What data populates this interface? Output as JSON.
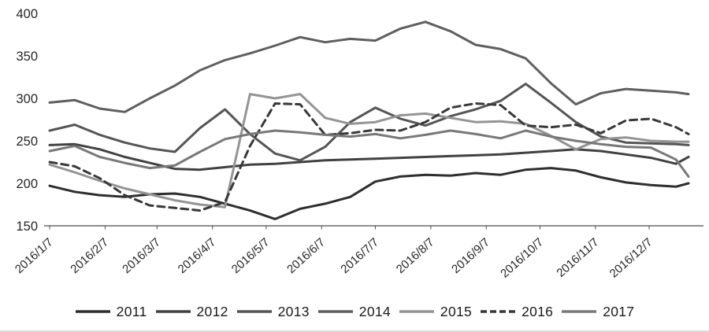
{
  "chart_data": {
    "type": "line",
    "title": "",
    "xlabel": "",
    "ylabel": "",
    "grid": false,
    "legend_position": "bottom",
    "y_axis": {
      "min": 150,
      "max": 400,
      "step": 50,
      "tick_labels": [
        "150",
        "200",
        "250",
        "300",
        "350",
        "400"
      ]
    },
    "x_axis": {
      "tick_labels": [
        "2016/1/7",
        "2016/2/7",
        "2016/3/7",
        "2016/4/7",
        "2016/5/7",
        "2016/6/7",
        "2016/7/7",
        "2016/8/7",
        "2016/9/7",
        "2016/10/7",
        "2016/11/7",
        "2016/12/7"
      ],
      "tick_doys": [
        7,
        38,
        67,
        98,
        128,
        159,
        189,
        220,
        251,
        281,
        312,
        342
      ]
    },
    "sample_doys": [
      7,
      21,
      35,
      49,
      63,
      77,
      91,
      105,
      119,
      133,
      147,
      161,
      175,
      189,
      203,
      217,
      231,
      245,
      259,
      273,
      287,
      301,
      315,
      329,
      343,
      357,
      364
    ],
    "series": [
      {
        "name": "2011",
        "color": "#2e2e2e",
        "style": "solid",
        "values": [
          197,
          190,
          186,
          184,
          187,
          188,
          184,
          176,
          168,
          158,
          170,
          176,
          184,
          202,
          208,
          210,
          209,
          212,
          210,
          216,
          218,
          215,
          207,
          201,
          198,
          196,
          200
        ]
      },
      {
        "name": "2012",
        "color": "#414141",
        "style": "solid",
        "values": [
          245,
          246,
          240,
          231,
          224,
          217,
          216,
          219,
          222,
          223,
          225,
          227,
          228,
          229,
          230,
          231,
          232,
          233,
          234,
          236,
          238,
          240,
          238,
          234,
          230,
          223,
          231
        ]
      },
      {
        "name": "2013",
        "color": "#555555",
        "style": "solid",
        "values": [
          262,
          269,
          257,
          248,
          241,
          237,
          265,
          287,
          258,
          235,
          227,
          243,
          272,
          289,
          276,
          268,
          279,
          287,
          297,
          317,
          295,
          272,
          255,
          248,
          247,
          246,
          245
        ]
      },
      {
        "name": "2014",
        "color": "#5f5f5f",
        "style": "solid",
        "values": [
          295,
          298,
          288,
          284,
          300,
          315,
          333,
          345,
          353,
          362,
          372,
          366,
          370,
          368,
          382,
          390,
          379,
          363,
          358,
          347,
          318,
          293,
          306,
          311,
          309,
          307,
          305
        ]
      },
      {
        "name": "2015",
        "color": "#949494",
        "style": "solid",
        "values": [
          222,
          213,
          203,
          194,
          187,
          180,
          175,
          172,
          305,
          300,
          305,
          277,
          270,
          272,
          280,
          282,
          277,
          272,
          273,
          270,
          256,
          240,
          252,
          254,
          250,
          249,
          249
        ]
      },
      {
        "name": "2016",
        "color": "#383838",
        "style": "dashed",
        "values": [
          225,
          220,
          206,
          186,
          174,
          171,
          168,
          178,
          244,
          294,
          293,
          257,
          259,
          263,
          262,
          272,
          289,
          294,
          292,
          268,
          266,
          269,
          259,
          274,
          276,
          266,
          258
        ]
      },
      {
        "name": "2017",
        "color": "#787878",
        "style": "solid",
        "values": [
          238,
          244,
          231,
          224,
          218,
          221,
          237,
          252,
          258,
          262,
          260,
          257,
          255,
          258,
          253,
          257,
          262,
          258,
          253,
          262,
          255,
          250,
          246,
          243,
          242,
          228,
          208
        ]
      }
    ]
  }
}
